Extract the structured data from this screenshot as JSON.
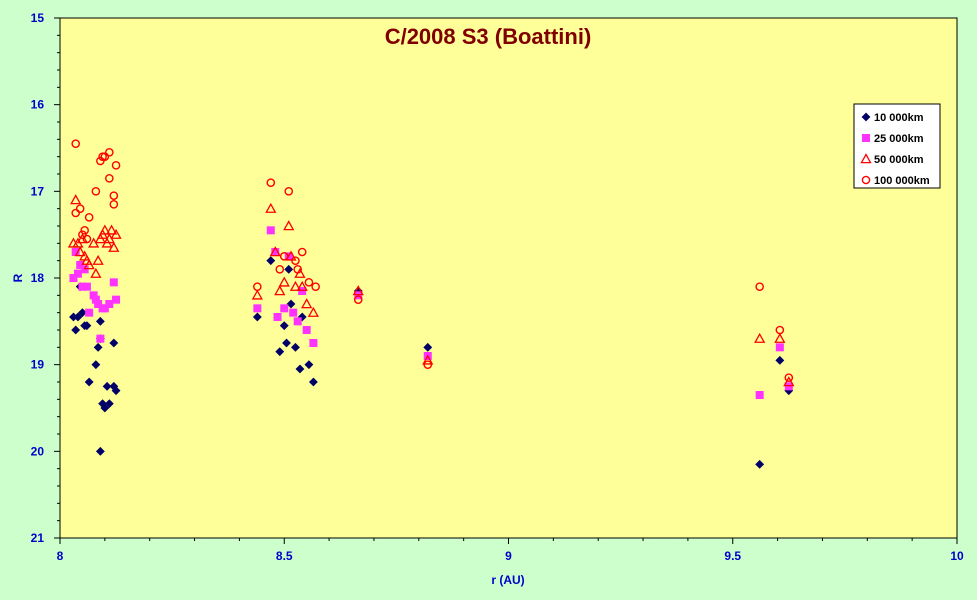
{
  "chart_data": {
    "type": "scatter",
    "title": "C/2008 S3 (Boattini)",
    "xlabel": "r (AU)",
    "ylabel": "R",
    "xlim": [
      8,
      10
    ],
    "ylim": [
      15,
      21
    ],
    "y_inverted": true,
    "x_ticks": [
      "8",
      "8.5",
      "9",
      "9.5",
      "10"
    ],
    "y_ticks": [
      "15",
      "16",
      "17",
      "18",
      "19",
      "20",
      "21"
    ],
    "grid": false,
    "plot_background": "#ffff99",
    "page_background": "#ccffcc",
    "legend_position": "top-right",
    "series": [
      {
        "name": "10 000km",
        "marker": "diamond",
        "color": "#000066",
        "points": [
          [
            8.03,
            18.45
          ],
          [
            8.035,
            18.6
          ],
          [
            8.04,
            18.45
          ],
          [
            8.045,
            18.1
          ],
          [
            8.05,
            18.4
          ],
          [
            8.055,
            18.55
          ],
          [
            8.06,
            18.55
          ],
          [
            8.065,
            19.2
          ],
          [
            8.08,
            19.0
          ],
          [
            8.085,
            18.8
          ],
          [
            8.09,
            18.7
          ],
          [
            8.09,
            18.5
          ],
          [
            8.09,
            20.0
          ],
          [
            8.095,
            19.45
          ],
          [
            8.1,
            19.5
          ],
          [
            8.105,
            19.25
          ],
          [
            8.11,
            19.45
          ],
          [
            8.12,
            18.75
          ],
          [
            8.12,
            19.25
          ],
          [
            8.125,
            19.3
          ],
          [
            8.44,
            18.45
          ],
          [
            8.47,
            17.8
          ],
          [
            8.49,
            18.85
          ],
          [
            8.5,
            18.55
          ],
          [
            8.505,
            18.75
          ],
          [
            8.51,
            17.9
          ],
          [
            8.515,
            18.3
          ],
          [
            8.525,
            18.8
          ],
          [
            8.535,
            19.05
          ],
          [
            8.54,
            18.45
          ],
          [
            8.555,
            19.0
          ],
          [
            8.565,
            19.2
          ],
          [
            8.665,
            18.15
          ],
          [
            8.82,
            18.8
          ],
          [
            9.56,
            20.15
          ],
          [
            9.605,
            18.95
          ],
          [
            9.625,
            19.3
          ]
        ]
      },
      {
        "name": "25 000km",
        "marker": "square",
        "color": "#ff33ff",
        "points": [
          [
            8.03,
            18.0
          ],
          [
            8.035,
            17.7
          ],
          [
            8.04,
            17.95
          ],
          [
            8.045,
            17.85
          ],
          [
            8.05,
            18.1
          ],
          [
            8.055,
            17.9
          ],
          [
            8.06,
            18.1
          ],
          [
            8.065,
            18.4
          ],
          [
            8.075,
            18.2
          ],
          [
            8.08,
            18.25
          ],
          [
            8.085,
            18.3
          ],
          [
            8.09,
            18.7
          ],
          [
            8.095,
            18.35
          ],
          [
            8.1,
            18.35
          ],
          [
            8.11,
            18.3
          ],
          [
            8.12,
            18.05
          ],
          [
            8.125,
            18.25
          ],
          [
            8.44,
            18.35
          ],
          [
            8.47,
            17.45
          ],
          [
            8.48,
            17.7
          ],
          [
            8.485,
            18.45
          ],
          [
            8.5,
            18.35
          ],
          [
            8.51,
            17.75
          ],
          [
            8.52,
            18.4
          ],
          [
            8.53,
            18.5
          ],
          [
            8.54,
            18.15
          ],
          [
            8.55,
            18.6
          ],
          [
            8.565,
            18.75
          ],
          [
            8.665,
            18.2
          ],
          [
            8.82,
            18.9
          ],
          [
            9.56,
            19.35
          ],
          [
            9.605,
            18.8
          ],
          [
            9.625,
            19.25
          ]
        ]
      },
      {
        "name": "50 000km",
        "marker": "triangle",
        "color": "#ff0000",
        "points": [
          [
            8.03,
            17.6
          ],
          [
            8.035,
            17.1
          ],
          [
            8.04,
            17.6
          ],
          [
            8.045,
            17.7
          ],
          [
            8.05,
            17.55
          ],
          [
            8.055,
            17.75
          ],
          [
            8.06,
            17.8
          ],
          [
            8.065,
            17.85
          ],
          [
            8.075,
            17.6
          ],
          [
            8.08,
            17.95
          ],
          [
            8.085,
            17.8
          ],
          [
            8.09,
            17.55
          ],
          [
            8.095,
            17.5
          ],
          [
            8.1,
            17.45
          ],
          [
            8.105,
            17.6
          ],
          [
            8.11,
            17.55
          ],
          [
            8.115,
            17.45
          ],
          [
            8.12,
            17.65
          ],
          [
            8.125,
            17.5
          ],
          [
            8.44,
            18.2
          ],
          [
            8.47,
            17.2
          ],
          [
            8.48,
            17.7
          ],
          [
            8.49,
            18.15
          ],
          [
            8.5,
            18.05
          ],
          [
            8.51,
            17.4
          ],
          [
            8.515,
            17.75
          ],
          [
            8.525,
            18.1
          ],
          [
            8.535,
            17.95
          ],
          [
            8.54,
            18.1
          ],
          [
            8.55,
            18.3
          ],
          [
            8.565,
            18.4
          ],
          [
            8.665,
            18.15
          ],
          [
            8.82,
            18.95
          ],
          [
            9.56,
            18.7
          ],
          [
            9.605,
            18.7
          ],
          [
            9.625,
            19.2
          ]
        ]
      },
      {
        "name": "100 000km",
        "marker": "circle",
        "color": "#ff0000",
        "points": [
          [
            8.035,
            16.45
          ],
          [
            8.035,
            17.25
          ],
          [
            8.045,
            17.2
          ],
          [
            8.05,
            17.5
          ],
          [
            8.055,
            17.45
          ],
          [
            8.06,
            17.55
          ],
          [
            8.065,
            17.3
          ],
          [
            8.08,
            17.0
          ],
          [
            8.09,
            16.65
          ],
          [
            8.095,
            16.6
          ],
          [
            8.1,
            16.6
          ],
          [
            8.11,
            16.55
          ],
          [
            8.11,
            16.85
          ],
          [
            8.12,
            17.05
          ],
          [
            8.12,
            17.15
          ],
          [
            8.125,
            16.7
          ],
          [
            8.44,
            18.1
          ],
          [
            8.47,
            16.9
          ],
          [
            8.49,
            17.9
          ],
          [
            8.5,
            17.75
          ],
          [
            8.51,
            17.0
          ],
          [
            8.525,
            17.8
          ],
          [
            8.53,
            17.9
          ],
          [
            8.54,
            17.7
          ],
          [
            8.555,
            18.05
          ],
          [
            8.57,
            18.1
          ],
          [
            8.665,
            18.25
          ],
          [
            8.82,
            19.0
          ],
          [
            9.56,
            18.1
          ],
          [
            9.605,
            18.6
          ],
          [
            9.625,
            19.15
          ]
        ]
      }
    ]
  }
}
